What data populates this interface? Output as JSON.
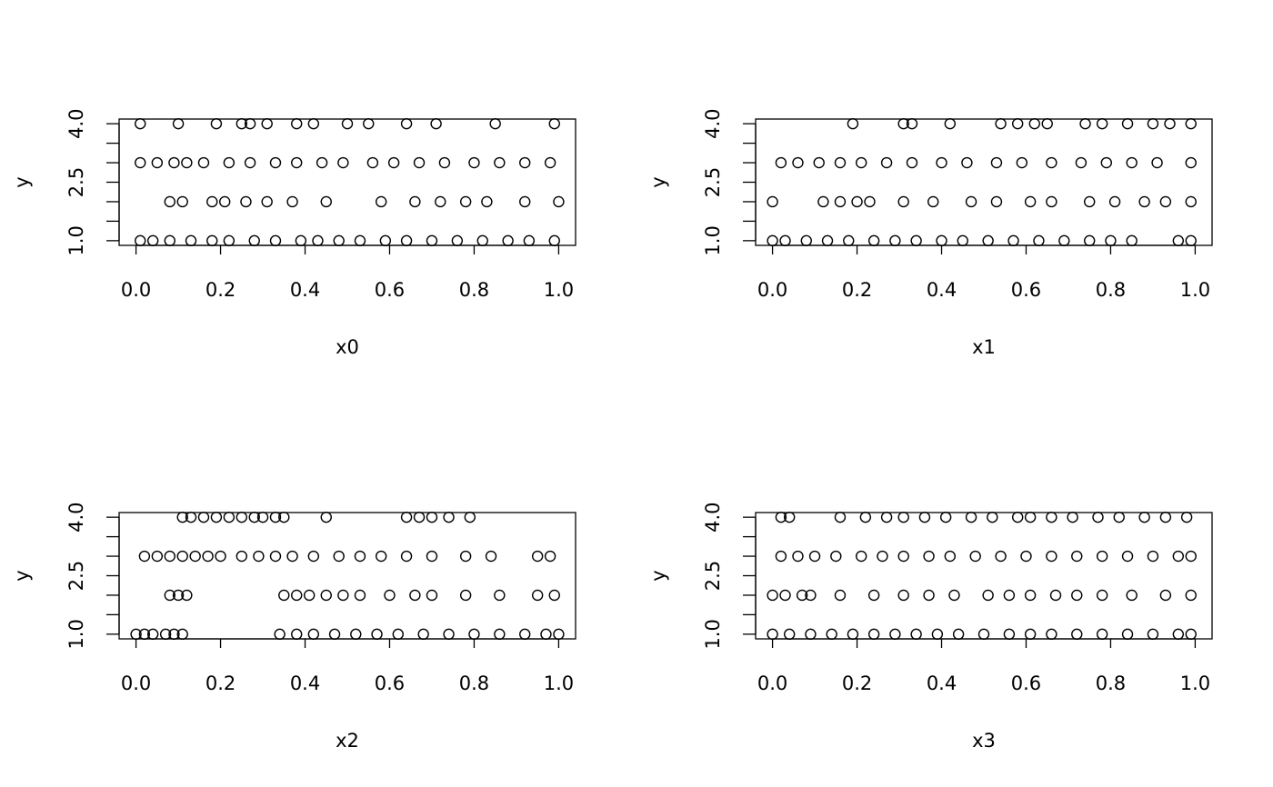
{
  "chart_data": [
    {
      "type": "scatter",
      "xlabel": "x0",
      "ylabel": "y",
      "x": [
        0.01,
        0.1,
        0.19,
        0.25,
        0.27,
        0.31,
        0.38,
        0.42,
        0.5,
        0.55,
        0.64,
        0.71,
        0.85,
        0.99,
        0.01,
        0.05,
        0.09,
        0.12,
        0.16,
        0.22,
        0.27,
        0.33,
        0.38,
        0.44,
        0.49,
        0.56,
        0.61,
        0.67,
        0.73,
        0.8,
        0.86,
        0.92,
        0.98,
        0.08,
        0.11,
        0.18,
        0.21,
        0.26,
        0.31,
        0.37,
        0.45,
        0.58,
        0.66,
        0.72,
        0.78,
        0.83,
        0.92,
        1.0,
        0.01,
        0.04,
        0.08,
        0.13,
        0.18,
        0.22,
        0.28,
        0.33,
        0.39,
        0.43,
        0.48,
        0.53,
        0.59,
        0.64,
        0.7,
        0.76,
        0.82,
        0.88,
        0.93,
        0.99
      ],
      "y": [
        4,
        4,
        4,
        4,
        4,
        4,
        4,
        4,
        4,
        4,
        4,
        4,
        4,
        4,
        3,
        3,
        3,
        3,
        3,
        3,
        3,
        3,
        3,
        3,
        3,
        3,
        3,
        3,
        3,
        3,
        3,
        3,
        3,
        2,
        2,
        2,
        2,
        2,
        2,
        2,
        2,
        2,
        2,
        2,
        2,
        2,
        2,
        2,
        1,
        1,
        1,
        1,
        1,
        1,
        1,
        1,
        1,
        1,
        1,
        1,
        1,
        1,
        1,
        1,
        1,
        1,
        1,
        1
      ],
      "xlim": [
        -0.04,
        1.04
      ],
      "ylim": [
        0.88,
        4.12
      ],
      "xticks": [
        {
          "value": 0,
          "label": "0.0"
        },
        0.2,
        0.4,
        0.6,
        0.8,
        {
          "value": 1,
          "label": "1.0"
        }
      ],
      "yticks": [
        {
          "value": 1,
          "label": "1.0"
        },
        2.5,
        {
          "value": 4,
          "label": "4.0"
        }
      ],
      "yminor_ticks": [
        1.5,
        2,
        3,
        3.5
      ],
      "color": "#000000"
    },
    {
      "type": "scatter",
      "xlabel": "x1",
      "ylabel": "y",
      "x": [
        0.19,
        0.31,
        0.33,
        0.42,
        0.54,
        0.58,
        0.62,
        0.65,
        0.74,
        0.78,
        0.84,
        0.9,
        0.94,
        0.99,
        0.02,
        0.06,
        0.11,
        0.16,
        0.21,
        0.27,
        0.33,
        0.4,
        0.46,
        0.53,
        0.59,
        0.66,
        0.73,
        0.79,
        0.85,
        0.91,
        0.99,
        0.0,
        0.12,
        0.16,
        0.2,
        0.23,
        0.31,
        0.38,
        0.47,
        0.53,
        0.61,
        0.66,
        0.75,
        0.81,
        0.88,
        0.93,
        0.99,
        0.0,
        0.03,
        0.08,
        0.13,
        0.18,
        0.24,
        0.29,
        0.34,
        0.4,
        0.45,
        0.51,
        0.57,
        0.63,
        0.69,
        0.75,
        0.8,
        0.85,
        0.96,
        0.99
      ],
      "y": [
        4,
        4,
        4,
        4,
        4,
        4,
        4,
        4,
        4,
        4,
        4,
        4,
        4,
        4,
        3,
        3,
        3,
        3,
        3,
        3,
        3,
        3,
        3,
        3,
        3,
        3,
        3,
        3,
        3,
        3,
        3,
        2,
        2,
        2,
        2,
        2,
        2,
        2,
        2,
        2,
        2,
        2,
        2,
        2,
        2,
        2,
        2,
        1,
        1,
        1,
        1,
        1,
        1,
        1,
        1,
        1,
        1,
        1,
        1,
        1,
        1,
        1,
        1,
        1,
        1,
        1
      ],
      "xlim": [
        -0.04,
        1.04
      ],
      "ylim": [
        0.88,
        4.12
      ],
      "xticks": [
        {
          "value": 0,
          "label": "0.0"
        },
        0.2,
        0.4,
        0.6,
        0.8,
        {
          "value": 1,
          "label": "1.0"
        }
      ],
      "yticks": [
        {
          "value": 1,
          "label": "1.0"
        },
        2.5,
        {
          "value": 4,
          "label": "4.0"
        }
      ],
      "yminor_ticks": [
        1.5,
        2,
        3,
        3.5
      ],
      "color": "#000000"
    },
    {
      "type": "scatter",
      "xlabel": "x2",
      "ylabel": "y",
      "x": [
        0.11,
        0.13,
        0.16,
        0.19,
        0.22,
        0.25,
        0.28,
        0.3,
        0.33,
        0.35,
        0.45,
        0.64,
        0.67,
        0.7,
        0.74,
        0.79,
        0.02,
        0.05,
        0.08,
        0.11,
        0.14,
        0.17,
        0.2,
        0.25,
        0.29,
        0.33,
        0.37,
        0.42,
        0.48,
        0.53,
        0.58,
        0.64,
        0.7,
        0.78,
        0.84,
        0.95,
        0.98,
        0.08,
        0.1,
        0.12,
        0.35,
        0.38,
        0.41,
        0.45,
        0.49,
        0.53,
        0.6,
        0.66,
        0.7,
        0.78,
        0.86,
        0.95,
        0.99,
        0.0,
        0.02,
        0.04,
        0.07,
        0.09,
        0.11,
        0.34,
        0.38,
        0.42,
        0.47,
        0.52,
        0.57,
        0.62,
        0.68,
        0.74,
        0.8,
        0.86,
        0.92,
        0.97,
        1.0
      ],
      "y": [
        4,
        4,
        4,
        4,
        4,
        4,
        4,
        4,
        4,
        4,
        4,
        4,
        4,
        4,
        4,
        4,
        3,
        3,
        3,
        3,
        3,
        3,
        3,
        3,
        3,
        3,
        3,
        3,
        3,
        3,
        3,
        3,
        3,
        3,
        3,
        3,
        3,
        2,
        2,
        2,
        2,
        2,
        2,
        2,
        2,
        2,
        2,
        2,
        2,
        2,
        2,
        2,
        2,
        1,
        1,
        1,
        1,
        1,
        1,
        1,
        1,
        1,
        1,
        1,
        1,
        1,
        1,
        1,
        1,
        1,
        1,
        1,
        1
      ],
      "xlim": [
        -0.04,
        1.04
      ],
      "ylim": [
        0.88,
        4.12
      ],
      "xticks": [
        {
          "value": 0,
          "label": "0.0"
        },
        0.2,
        0.4,
        0.6,
        0.8,
        {
          "value": 1,
          "label": "1.0"
        }
      ],
      "yticks": [
        {
          "value": 1,
          "label": "1.0"
        },
        2.5,
        {
          "value": 4,
          "label": "4.0"
        }
      ],
      "yminor_ticks": [
        1.5,
        2,
        3,
        3.5
      ],
      "color": "#000000"
    },
    {
      "type": "scatter",
      "xlabel": "x3",
      "ylabel": "y",
      "x": [
        0.02,
        0.04,
        0.16,
        0.22,
        0.27,
        0.31,
        0.36,
        0.41,
        0.47,
        0.52,
        0.58,
        0.61,
        0.66,
        0.71,
        0.77,
        0.82,
        0.88,
        0.93,
        0.98,
        0.02,
        0.06,
        0.1,
        0.15,
        0.21,
        0.26,
        0.31,
        0.37,
        0.42,
        0.48,
        0.54,
        0.6,
        0.66,
        0.72,
        0.78,
        0.84,
        0.9,
        0.96,
        0.99,
        0.0,
        0.03,
        0.07,
        0.09,
        0.16,
        0.24,
        0.31,
        0.37,
        0.43,
        0.51,
        0.56,
        0.61,
        0.67,
        0.72,
        0.78,
        0.85,
        0.93,
        0.99,
        0.0,
        0.04,
        0.09,
        0.14,
        0.19,
        0.24,
        0.29,
        0.34,
        0.39,
        0.44,
        0.5,
        0.56,
        0.61,
        0.66,
        0.72,
        0.78,
        0.84,
        0.9,
        0.96,
        0.99
      ],
      "y": [
        4,
        4,
        4,
        4,
        4,
        4,
        4,
        4,
        4,
        4,
        4,
        4,
        4,
        4,
        4,
        4,
        4,
        4,
        4,
        3,
        3,
        3,
        3,
        3,
        3,
        3,
        3,
        3,
        3,
        3,
        3,
        3,
        3,
        3,
        3,
        3,
        3,
        3,
        2,
        2,
        2,
        2,
        2,
        2,
        2,
        2,
        2,
        2,
        2,
        2,
        2,
        2,
        2,
        2,
        2,
        2,
        1,
        1,
        1,
        1,
        1,
        1,
        1,
        1,
        1,
        1,
        1,
        1,
        1,
        1,
        1,
        1,
        1,
        1,
        1,
        1
      ],
      "xlim": [
        -0.04,
        1.04
      ],
      "ylim": [
        0.88,
        4.12
      ],
      "xticks": [
        {
          "value": 0,
          "label": "0.0"
        },
        0.2,
        0.4,
        0.6,
        0.8,
        {
          "value": 1,
          "label": "1.0"
        }
      ],
      "yticks": [
        {
          "value": 1,
          "label": "1.0"
        },
        2.5,
        {
          "value": 4,
          "label": "4.0"
        }
      ],
      "yminor_ticks": [
        1.5,
        2,
        3,
        3.5
      ],
      "color": "#000000"
    }
  ]
}
